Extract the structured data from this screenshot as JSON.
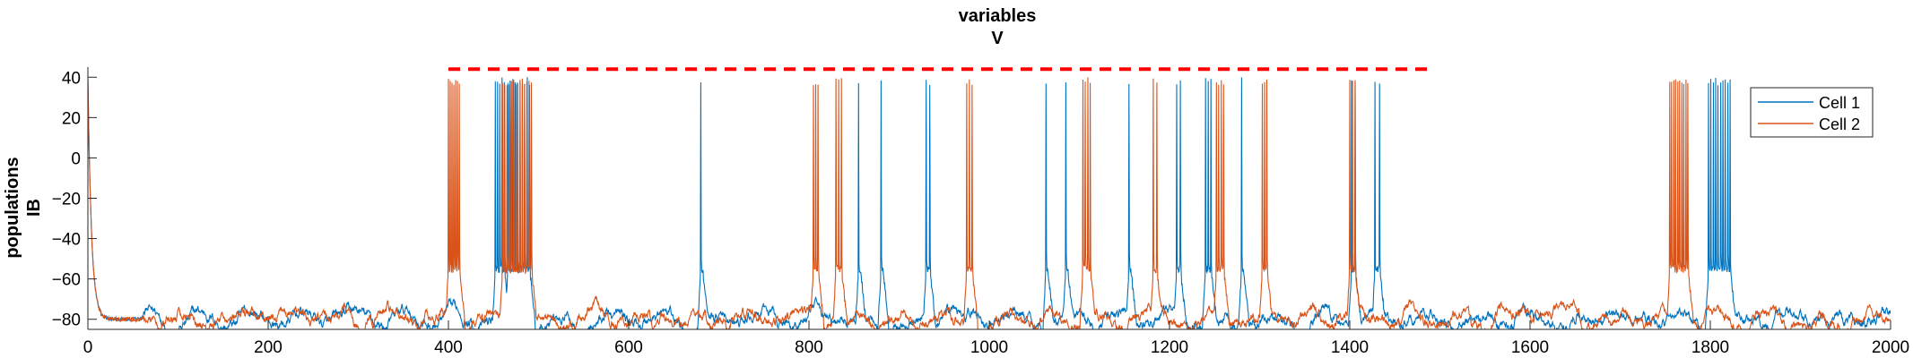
{
  "figure": {
    "title_lines": [
      "variables",
      "V"
    ],
    "ylabel_lines": [
      "populations",
      "IB"
    ]
  },
  "chart_data": {
    "type": "line",
    "title": "variables V",
    "ylabel": "populations IB",
    "xlabel": "",
    "xlim": [
      0,
      2000
    ],
    "ylim": [
      -85,
      45
    ],
    "xticks": [
      0,
      200,
      400,
      600,
      800,
      1000,
      1200,
      1400,
      1600,
      1800,
      2000
    ],
    "yticks": [
      -80,
      -60,
      -40,
      -20,
      0,
      20,
      40
    ],
    "grid": false,
    "legend_location": "top-right",
    "baseline_mV": -80,
    "spike_peak_mV": 40,
    "series": [
      {
        "name": "Cell 1",
        "color": "#0072BD",
        "bursts": [
          {
            "start": 452,
            "end": 462,
            "spikes": 5
          },
          {
            "start": 466,
            "end": 490,
            "spikes": 10
          },
          {
            "start": 680,
            "end": 682,
            "spikes": 1
          },
          {
            "start": 855,
            "end": 857,
            "spikes": 1
          },
          {
            "start": 880,
            "end": 882,
            "spikes": 1
          },
          {
            "start": 930,
            "end": 934,
            "spikes": 2
          },
          {
            "start": 1063,
            "end": 1065,
            "spikes": 1
          },
          {
            "start": 1085,
            "end": 1087,
            "spikes": 1
          },
          {
            "start": 1155,
            "end": 1157,
            "spikes": 1
          },
          {
            "start": 1208,
            "end": 1212,
            "spikes": 2
          },
          {
            "start": 1240,
            "end": 1246,
            "spikes": 3
          },
          {
            "start": 1280,
            "end": 1282,
            "spikes": 1
          },
          {
            "start": 1402,
            "end": 1406,
            "spikes": 2
          },
          {
            "start": 1428,
            "end": 1433,
            "spikes": 2
          },
          {
            "start": 1798,
            "end": 1822,
            "spikes": 10
          }
        ]
      },
      {
        "name": "Cell 2",
        "color": "#D95319",
        "bursts": [
          {
            "start": 400,
            "end": 412,
            "spikes": 7
          },
          {
            "start": 460,
            "end": 492,
            "spikes": 14
          },
          {
            "start": 805,
            "end": 810,
            "spikes": 3
          },
          {
            "start": 830,
            "end": 836,
            "spikes": 3
          },
          {
            "start": 975,
            "end": 981,
            "spikes": 3
          },
          {
            "start": 1104,
            "end": 1112,
            "spikes": 4
          },
          {
            "start": 1182,
            "end": 1186,
            "spikes": 2
          },
          {
            "start": 1252,
            "end": 1260,
            "spikes": 4
          },
          {
            "start": 1303,
            "end": 1308,
            "spikes": 3
          },
          {
            "start": 1400,
            "end": 1406,
            "spikes": 3
          },
          {
            "start": 1755,
            "end": 1775,
            "spikes": 10
          }
        ]
      }
    ],
    "annotations": [
      {
        "type": "dashed_hline",
        "color": "#FF0000",
        "y": 44,
        "x_start": 400,
        "x_end": 1490
      }
    ]
  }
}
